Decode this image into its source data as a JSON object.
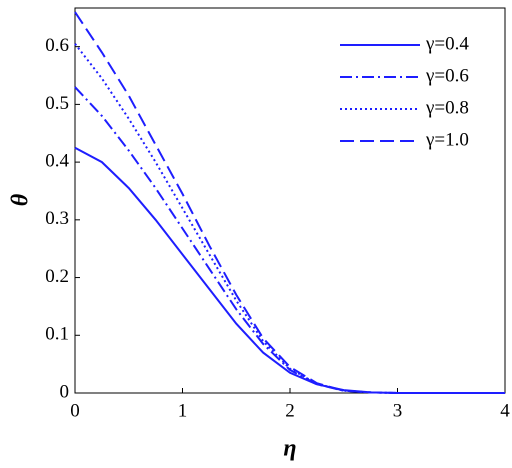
{
  "chart_data": {
    "type": "line",
    "x_label": "η",
    "y_label": "θ",
    "x": [
      0,
      0.25,
      0.5,
      0.75,
      1,
      1.25,
      1.5,
      1.75,
      2,
      2.25,
      2.5,
      2.75,
      3,
      3.5,
      4
    ],
    "xlim": [
      0,
      4
    ],
    "xticks": [
      0,
      1,
      2,
      3,
      4
    ],
    "ylim": [
      0,
      0.667
    ],
    "yticks": [
      0,
      0.1,
      0.2,
      0.3,
      0.4,
      0.5,
      0.6
    ],
    "legend": "upper right",
    "series": [
      {
        "name": "γ=0.4",
        "color": "#1e1eff",
        "dash": "solid",
        "values": [
          0.425,
          0.4,
          0.355,
          0.3,
          0.24,
          0.18,
          0.12,
          0.07,
          0.035,
          0.015,
          0.005,
          0.001,
          0,
          0,
          0
        ]
      },
      {
        "name": "γ=0.6",
        "color": "#1e1eff",
        "dash": "dashdot",
        "values": [
          0.53,
          0.48,
          0.42,
          0.355,
          0.285,
          0.215,
          0.145,
          0.085,
          0.04,
          0.015,
          0.004,
          0.001,
          0,
          0,
          0
        ]
      },
      {
        "name": "γ=0.8",
        "color": "#1e1eff",
        "dash": "dotted",
        "values": [
          0.605,
          0.545,
          0.475,
          0.4,
          0.32,
          0.24,
          0.16,
          0.09,
          0.042,
          0.016,
          0.004,
          0.001,
          0,
          0,
          0
        ]
      },
      {
        "name": "γ=1.0",
        "color": "#1e1eff",
        "dash": "dashed",
        "values": [
          0.66,
          0.59,
          0.515,
          0.43,
          0.345,
          0.255,
          0.17,
          0.095,
          0.045,
          0.017,
          0.004,
          0.001,
          0,
          0,
          0
        ]
      }
    ]
  }
}
